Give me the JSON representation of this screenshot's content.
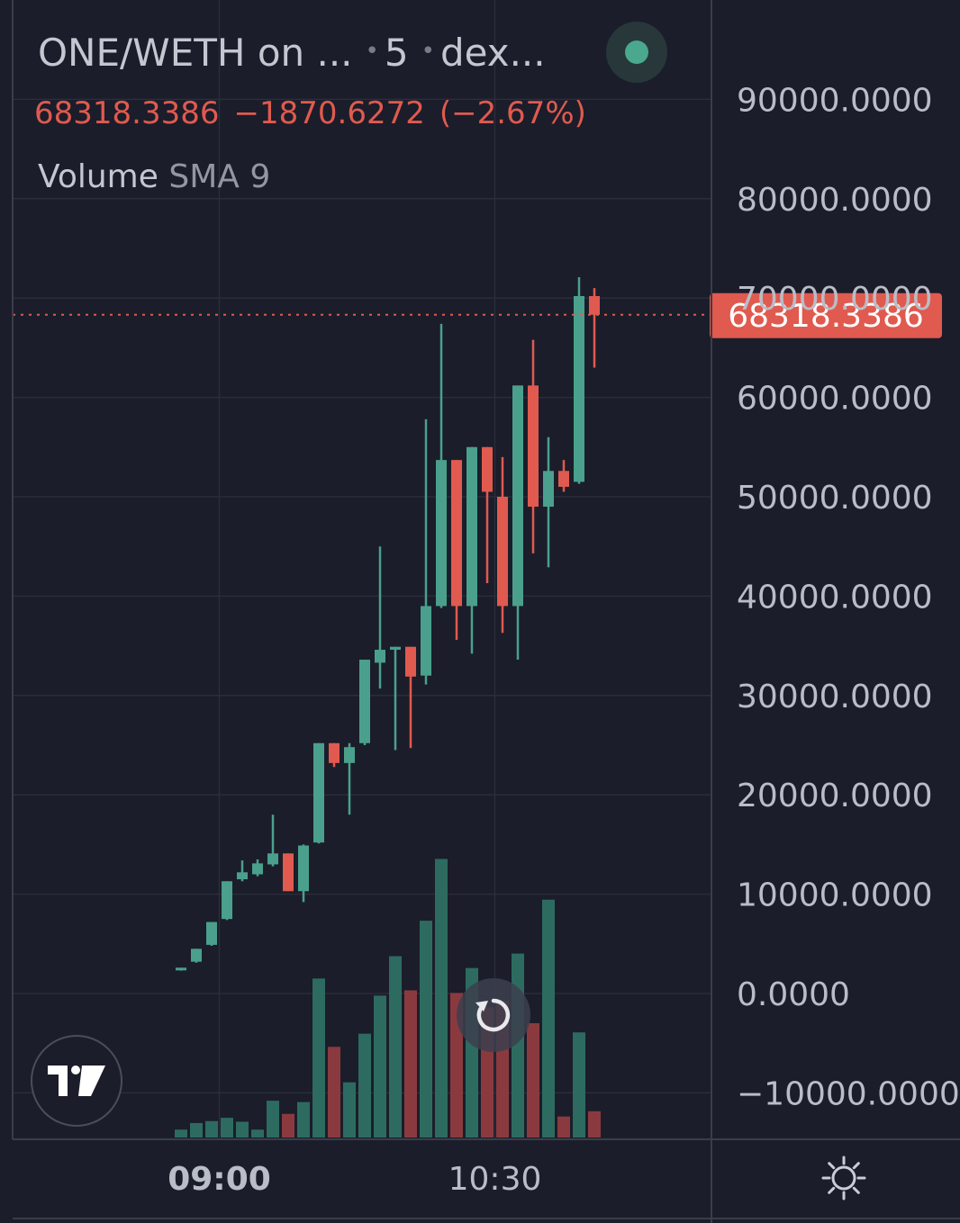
{
  "header": {
    "pair": "ONE/WETH on ...",
    "interval": "5",
    "source": "dex...",
    "last_price": "68318.3386",
    "change": "−1870.6272",
    "change_pct": "(−2.67%)",
    "volume_label": "Volume",
    "volume_indicator": "SMA 9"
  },
  "colors": {
    "background": "#1b1d2a",
    "up": "#4aa08c",
    "down": "#e05a4f",
    "up_volume": "#2d6b60",
    "down_volume": "#8a3a3e",
    "grid": "#2a2d3a",
    "axis_text": "#b9bdc7",
    "price_tag": "#e05a4f"
  },
  "chart_data": {
    "type": "candlestick",
    "price_axis": {
      "ticks": [
        90000,
        80000,
        70000,
        60000,
        50000,
        40000,
        30000,
        20000,
        10000,
        0,
        -10000
      ],
      "tick_labels": [
        "90000.0000",
        "80000.0000",
        "70000.0000",
        "60000.0000",
        "50000.0000",
        "40000.0000",
        "30000.0000",
        "20000.0000",
        "10000.0000",
        "0.0000",
        "−10000.0000"
      ]
    },
    "time_axis": {
      "labels": [
        "09:00",
        "10:30"
      ],
      "label_bar_index": [
        2.5,
        20.5
      ]
    },
    "last_price_marker": 68318.3386,
    "last_price_label": "68318.3386",
    "candles": [
      {
        "o": 2400,
        "h": 2600,
        "l": 2300,
        "c": 2600
      },
      {
        "o": 3200,
        "h": 4500,
        "l": 3100,
        "c": 4500
      },
      {
        "o": 4900,
        "h": 7200,
        "l": 4800,
        "c": 7200
      },
      {
        "o": 7500,
        "h": 11300,
        "l": 7400,
        "c": 11300
      },
      {
        "o": 11500,
        "h": 13400,
        "l": 11300,
        "c": 12200
      },
      {
        "o": 12000,
        "h": 13500,
        "l": 11800,
        "c": 13100
      },
      {
        "o": 13000,
        "h": 18000,
        "l": 12800,
        "c": 14100
      },
      {
        "o": 14100,
        "h": 14100,
        "l": 10300,
        "c": 10300
      },
      {
        "o": 10300,
        "h": 15000,
        "l": 9200,
        "c": 14900
      },
      {
        "o": 15200,
        "h": 25200,
        "l": 15100,
        "c": 25200
      },
      {
        "o": 25200,
        "h": 25200,
        "l": 22800,
        "c": 23200
      },
      {
        "o": 23200,
        "h": 25200,
        "l": 18000,
        "c": 24800
      },
      {
        "o": 25200,
        "h": 33600,
        "l": 25000,
        "c": 33600
      },
      {
        "o": 33300,
        "h": 45000,
        "l": 30700,
        "c": 34600
      },
      {
        "o": 34600,
        "h": 34900,
        "l": 24500,
        "c": 34900
      },
      {
        "o": 34900,
        "h": 34900,
        "l": 24700,
        "c": 31900
      },
      {
        "o": 32000,
        "h": 57800,
        "l": 31100,
        "c": 39000
      },
      {
        "o": 39000,
        "h": 67400,
        "l": 38800,
        "c": 53700
      },
      {
        "o": 53700,
        "h": 53700,
        "l": 35600,
        "c": 39000
      },
      {
        "o": 39000,
        "h": 55000,
        "l": 34200,
        "c": 55000
      },
      {
        "o": 55000,
        "h": 55000,
        "l": 41300,
        "c": 50500
      },
      {
        "o": 50000,
        "h": 54000,
        "l": 36300,
        "c": 39000
      },
      {
        "o": 39000,
        "h": 61200,
        "l": 33600,
        "c": 61200
      },
      {
        "o": 61200,
        "h": 65800,
        "l": 44300,
        "c": 49000
      },
      {
        "o": 49000,
        "h": 56000,
        "l": 42900,
        "c": 52600
      },
      {
        "o": 52600,
        "h": 53700,
        "l": 50500,
        "c": 51000
      },
      {
        "o": 51500,
        "h": 72100,
        "l": 51300,
        "c": 70200
      },
      {
        "o": 70200,
        "h": 71000,
        "l": 63000,
        "c": 68318.3386
      }
    ],
    "volume": [
      1.2,
      2.2,
      2.5,
      3.0,
      2.4,
      1.2,
      5.6,
      3.6,
      5.4,
      24.2,
      13.8,
      8.4,
      15.8,
      21.6,
      27.6,
      22.4,
      33.0,
      42.4,
      22.0,
      25.8,
      19.8,
      20.8,
      28.0,
      17.4,
      36.2,
      3.2,
      16.0,
      4.0
    ]
  }
}
